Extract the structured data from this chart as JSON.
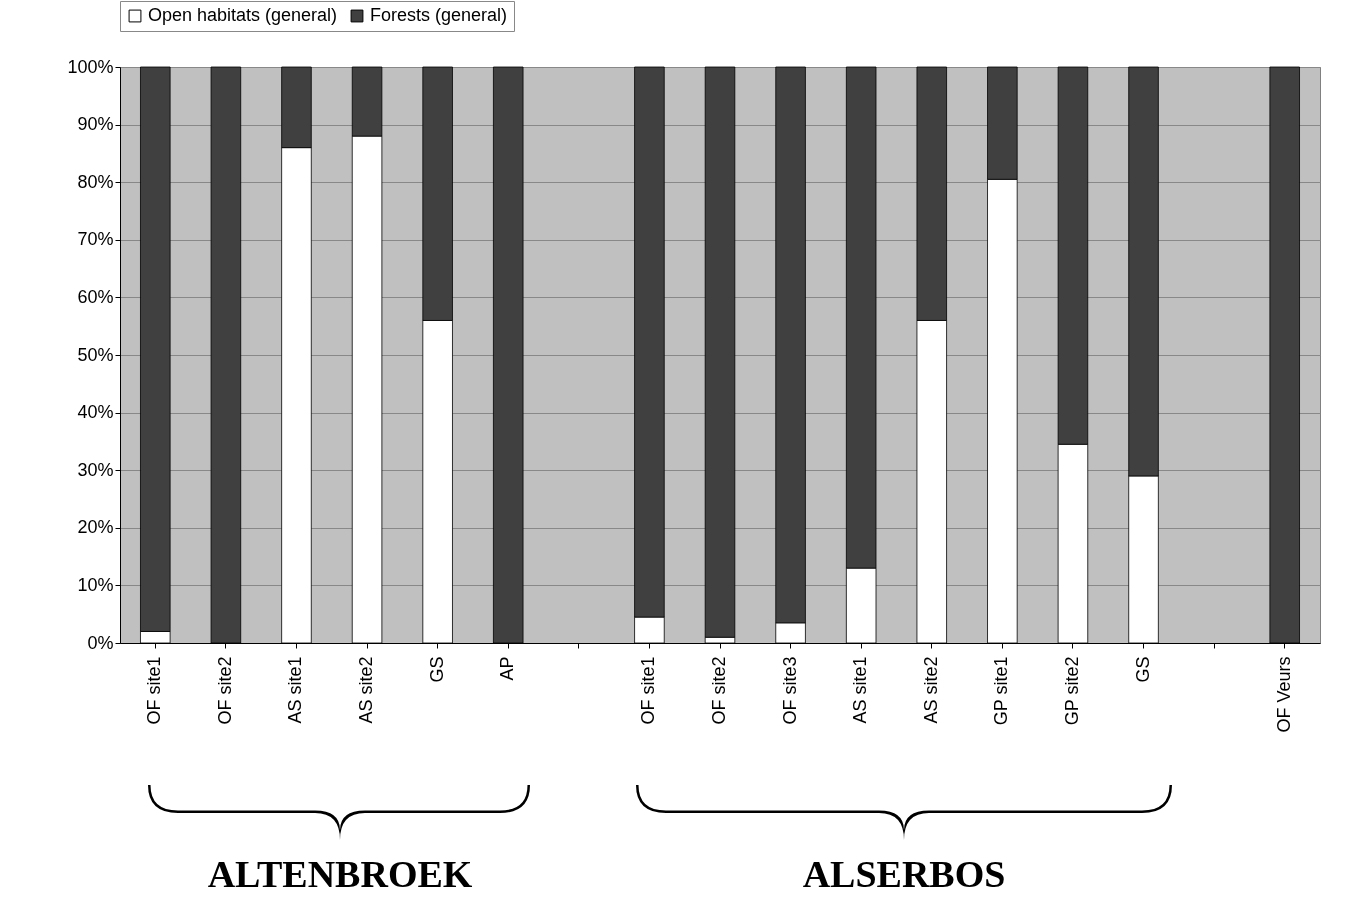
{
  "chart_data": {
    "type": "bar",
    "stacked": true,
    "categories": [
      "OF site1",
      "OF site2",
      "AS site1",
      "AS site2",
      "GS",
      "AP",
      null,
      "OF site1",
      "OF site2",
      "OF site3",
      "AS site1",
      "AS site2",
      "GP site1",
      "GP site2",
      "GS",
      null,
      "OF Veurs"
    ],
    "series": [
      {
        "name": "Open habitats (general)",
        "color": "#ffffff",
        "values": [
          2,
          0,
          86,
          88,
          56,
          0,
          null,
          4.5,
          1,
          3.5,
          13,
          56,
          80.5,
          34.5,
          29,
          null,
          0
        ]
      },
      {
        "name": "Forests (general)",
        "color": "#404040",
        "values": [
          98,
          100,
          14,
          12,
          44,
          100,
          null,
          95.5,
          99,
          96.5,
          87,
          44,
          19.5,
          65.5,
          71,
          null,
          100
        ]
      }
    ],
    "ylim": [
      0,
      100
    ],
    "yticks": [
      {
        "value": 0,
        "label": "0%"
      },
      {
        "value": 10,
        "label": "10%"
      },
      {
        "value": 20,
        "label": "20%"
      },
      {
        "value": 30,
        "label": "30%"
      },
      {
        "value": 40,
        "label": "40%"
      },
      {
        "value": 50,
        "label": "50%"
      },
      {
        "value": 60,
        "label": "60%"
      },
      {
        "value": 70,
        "label": "70%"
      },
      {
        "value": 80,
        "label": "80%"
      },
      {
        "value": 90,
        "label": "90%"
      },
      {
        "value": 100,
        "label": "100%"
      }
    ],
    "grid": "y",
    "legend": "top left",
    "annotations": [
      "ALTENBROEK",
      "ALSERBOS"
    ]
  }
}
